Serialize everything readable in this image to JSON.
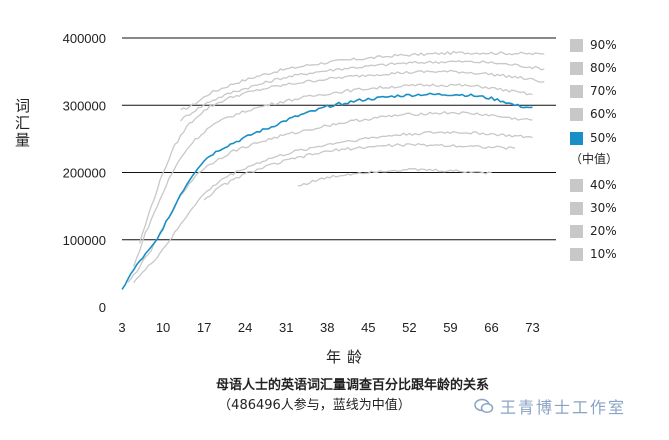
{
  "chart_data": {
    "type": "line",
    "title": "母语人士的英语词汇量调查百分比跟年龄的关系",
    "subtitle": "（486496人参与，蓝线为中值）",
    "xlabel": "年龄",
    "ylabel": "词汇量",
    "xlim": [
      3,
      77
    ],
    "ylim": [
      0,
      400000
    ],
    "x_ticks": [
      3,
      10,
      17,
      24,
      31,
      38,
      45,
      52,
      59,
      66,
      73
    ],
    "y_ticks": [
      0,
      100000,
      200000,
      300000,
      400000
    ],
    "y_tick_labels": [
      "0",
      "100000",
      "200000",
      "300000",
      "400000"
    ],
    "grid": "horizontal",
    "legend_position": "right",
    "series": [
      {
        "name": "90%",
        "color": "#c8c8c8",
        "x": [
          13,
          15,
          18,
          22,
          26,
          30,
          35,
          40,
          45,
          50,
          55,
          60,
          65,
          70,
          75
        ],
        "y": [
          292000,
          300000,
          318000,
          332000,
          343000,
          352000,
          360000,
          366000,
          370000,
          374000,
          376000,
          378000,
          378000,
          377000,
          376000
        ]
      },
      {
        "name": "80%",
        "color": "#c8c8c8",
        "x": [
          13,
          15,
          18,
          22,
          26,
          30,
          35,
          40,
          45,
          50,
          55,
          60,
          65,
          70,
          75
        ],
        "y": [
          278000,
          290000,
          306000,
          320000,
          330000,
          340000,
          348000,
          354000,
          358000,
          362000,
          364000,
          365000,
          364000,
          360000,
          354000
        ]
      },
      {
        "name": "70%",
        "color": "#c8c8c8",
        "x": [
          6,
          8,
          10,
          12,
          14,
          16,
          18,
          21,
          24,
          28,
          32,
          36,
          40,
          45,
          50,
          55,
          60,
          65,
          70,
          75
        ],
        "y": [
          95000,
          150000,
          200000,
          240000,
          268000,
          285000,
          298000,
          310000,
          318000,
          326000,
          332000,
          337000,
          341000,
          345000,
          348000,
          350000,
          350000,
          347000,
          342000,
          335000
        ]
      },
      {
        "name": "60%",
        "color": "#c8c8c8",
        "x": [
          5,
          7,
          9,
          11,
          13,
          15,
          18,
          21,
          25,
          29,
          33,
          37,
          41,
          45,
          50,
          55,
          60,
          65,
          70,
          73
        ],
        "y": [
          60000,
          110000,
          150000,
          190000,
          222000,
          245000,
          268000,
          282000,
          294000,
          303000,
          310000,
          316000,
          321000,
          325000,
          328000,
          330000,
          330000,
          327000,
          320000,
          316000
        ]
      },
      {
        "name": "50%",
        "color": "#1a8fc6",
        "x": [
          3,
          4,
          5,
          6,
          7,
          8,
          9,
          10,
          11,
          12,
          13,
          14,
          15,
          16,
          17,
          18,
          20,
          22,
          24,
          26,
          28,
          30,
          32,
          34,
          36,
          38,
          40,
          42,
          44,
          46,
          48,
          50,
          52,
          54,
          56,
          58,
          60,
          62,
          64,
          66,
          68,
          70,
          72,
          73
        ],
        "y": [
          25000,
          42000,
          55000,
          68000,
          78000,
          88000,
          100000,
          118000,
          135000,
          150000,
          168000,
          182000,
          196000,
          208000,
          218000,
          225000,
          236000,
          244000,
          252000,
          260000,
          266000,
          274000,
          281000,
          287000,
          292000,
          298000,
          302000,
          305000,
          308000,
          310000,
          312000,
          314000,
          315000,
          316000,
          316000,
          316000,
          316000,
          315000,
          313000,
          310000,
          306000,
          300000,
          297000,
          297000
        ]
      },
      {
        "name": "40%",
        "color": "#c8c8c8",
        "x": [
          4,
          6,
          8,
          10,
          12,
          14,
          16,
          19,
          22,
          26,
          30,
          34,
          38,
          42,
          46,
          50,
          55,
          60,
          65,
          70,
          73
        ],
        "y": [
          35000,
          60000,
          85000,
          118000,
          150000,
          178000,
          200000,
          218000,
          232000,
          244000,
          254000,
          262000,
          270000,
          276000,
          281000,
          285000,
          288000,
          289000,
          286000,
          280000,
          278000
        ]
      },
      {
        "name": "30%",
        "color": "#c8c8c8",
        "x": [
          5,
          7,
          9,
          11,
          13,
          15,
          17,
          20,
          24,
          28,
          32,
          36,
          40,
          45,
          50,
          55,
          60,
          65,
          70,
          73
        ],
        "y": [
          38000,
          55000,
          75000,
          98000,
          122000,
          148000,
          168000,
          190000,
          207000,
          220000,
          230000,
          238000,
          245000,
          251000,
          256000,
          259000,
          260000,
          258000,
          254000,
          252000
        ]
      },
      {
        "name": "20%",
        "color": "#c8c8c8",
        "x": [
          17,
          20,
          24,
          28,
          32,
          36,
          40,
          45,
          50,
          55,
          60,
          65,
          70
        ],
        "y": [
          160000,
          180000,
          198000,
          210000,
          220000,
          228000,
          234000,
          238000,
          241000,
          241000,
          240000,
          238000,
          236000
        ]
      },
      {
        "name": "10%",
        "color": "#c8c8c8",
        "x": [
          33,
          36,
          39,
          42,
          45,
          48,
          51,
          54,
          57,
          60,
          63,
          66
        ],
        "y": [
          180000,
          188000,
          194000,
          198000,
          201000,
          203000,
          204000,
          204000,
          203000,
          202000,
          201000,
          200000
        ]
      }
    ]
  },
  "legend": {
    "items": [
      {
        "label": "90%",
        "color": "#c8c8c8"
      },
      {
        "label": "80%",
        "color": "#c8c8c8"
      },
      {
        "label": "70%",
        "color": "#c8c8c8"
      },
      {
        "label": "60%",
        "color": "#c8c8c8"
      },
      {
        "label": "50%",
        "color": "#1a8fc6"
      },
      {
        "label": "40%",
        "color": "#c8c8c8"
      },
      {
        "label": "30%",
        "color": "#c8c8c8"
      },
      {
        "label": "20%",
        "color": "#c8c8c8"
      },
      {
        "label": "10%",
        "color": "#c8c8c8"
      }
    ],
    "median_note": "（中值）"
  },
  "caption": {
    "title": "母语人士的英语词汇量调查百分比跟年龄的关系",
    "subtitle": "（486496人参与，蓝线为中值）"
  },
  "watermark": {
    "text": "王青博士工作室",
    "icon": "wechat-icon"
  },
  "colors": {
    "median": "#1a8fc6",
    "percentile": "#c8c8c8",
    "grid": "#111111",
    "watermark": "#8aa3c4"
  }
}
